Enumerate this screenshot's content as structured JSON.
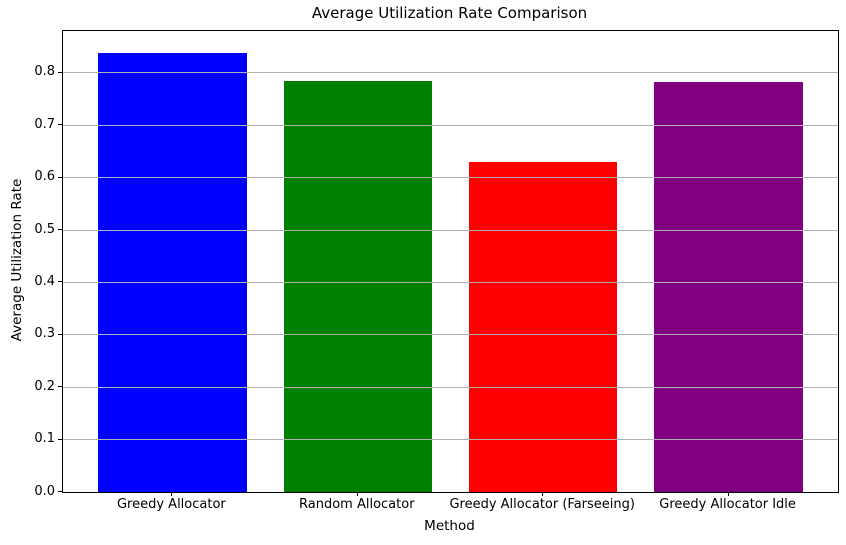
{
  "chart_data": {
    "type": "bar",
    "title": "Average Utilization Rate Comparison",
    "xlabel": "Method",
    "ylabel": "Average Utilization Rate",
    "categories": [
      "Greedy Allocator",
      "Random Allocator",
      "Greedy Allocator (Farseeing)",
      "Greedy Allocator Idle"
    ],
    "values": [
      0.838,
      0.784,
      0.63,
      0.782
    ],
    "bar_colors": [
      "#0000ff",
      "#008000",
      "#ff0000",
      "#800080"
    ],
    "ylim": [
      0,
      0.88
    ],
    "yticks": [
      0.0,
      0.1,
      0.2,
      0.3,
      0.4,
      0.5,
      0.6,
      0.7,
      0.8
    ],
    "ytick_labels": [
      "0.0",
      "0.1",
      "0.2",
      "0.3",
      "0.4",
      "0.5",
      "0.6",
      "0.7",
      "0.8"
    ],
    "grid": "horizontal-on-top-of-bars",
    "grid_color": "#b0b0b0",
    "axis_frame_color": "#000000",
    "background_color": "#ffffff",
    "legend_position": "none"
  }
}
